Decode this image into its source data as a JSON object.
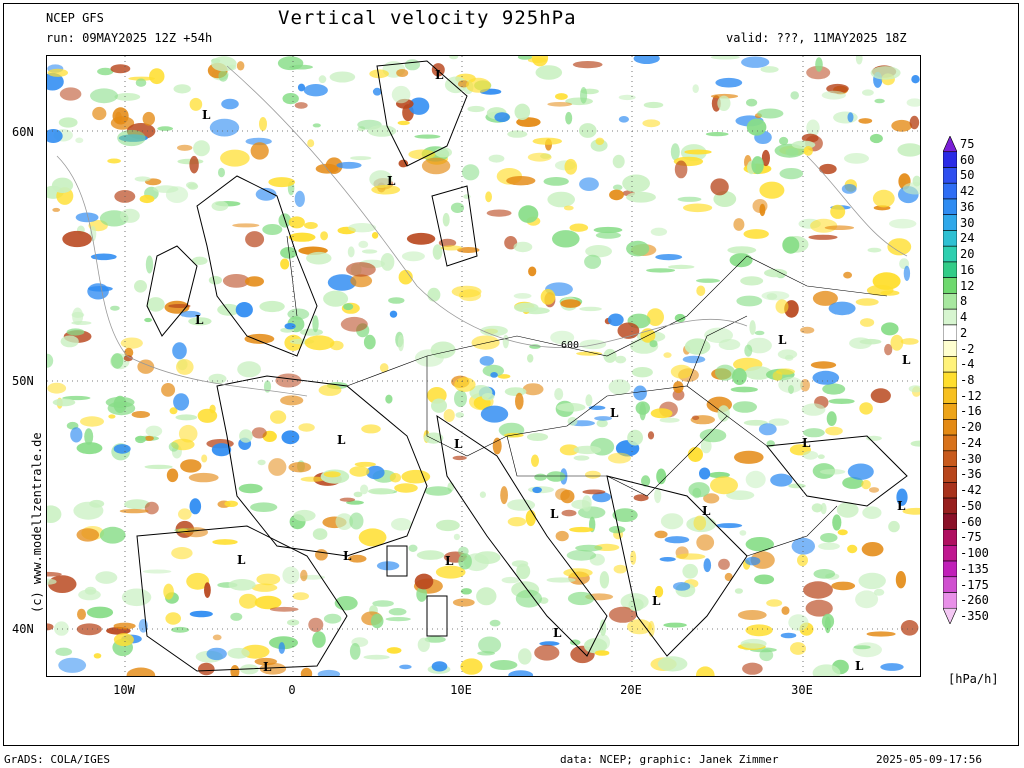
{
  "header": {
    "model": "NCEP GFS",
    "title": "Vertical velocity 925hPa",
    "run": "run: 09MAY2025 12Z +54h",
    "valid": "valid: ???, 11MAY2025 18Z"
  },
  "map": {
    "lat_labels": [
      "60N",
      "50N",
      "40N"
    ],
    "lon_labels": [
      "10W",
      "0",
      "10E",
      "20E",
      "30E"
    ],
    "low_marker": "L",
    "pressure_label": "600",
    "credit": "(c) www.modellzentrale.de"
  },
  "colorbar": {
    "unit": "[hPa/h]",
    "levels": [
      "75",
      "60",
      "50",
      "42",
      "36",
      "30",
      "24",
      "20",
      "16",
      "12",
      "8",
      "4",
      "2",
      "-2",
      "-4",
      "-8",
      "-12",
      "-16",
      "-20",
      "-24",
      "-30",
      "-36",
      "-42",
      "-50",
      "-60",
      "-75",
      "-100",
      "-135",
      "-175",
      "-260",
      "-350"
    ],
    "colors": [
      "#7a1fd6",
      "#2b2be6",
      "#2f4ff0",
      "#2f6ef4",
      "#2f8cf2",
      "#2fa8ea",
      "#2ec0d2",
      "#2ecfb0",
      "#33cc88",
      "#6fd96f",
      "#a8e8a0",
      "#d7f5d0",
      "#ffffff",
      "#ffffd0",
      "#fff27a",
      "#ffde2e",
      "#f7c020",
      "#eea418",
      "#e48a14",
      "#d8721a",
      "#c85a1c",
      "#b8461c",
      "#a8321c",
      "#98201e",
      "#8a1028",
      "#b01060",
      "#c01890",
      "#c020b8",
      "#d050d0",
      "#e890e8",
      "#f4c8f4"
    ]
  },
  "footer": {
    "left": "GrADS: COLA/IGES",
    "data": "data: NCEP; graphic: Janek Zimmer",
    "timestamp": "2025-05-09-17:56"
  },
  "colors": {
    "land_green": "#c8f0c0",
    "updraft_green": "#88dd88",
    "downdraft_yellow": "#ffde2e",
    "downdraft_orange": "#e48a14",
    "strong_downdraft": "#b8461c",
    "updraft_blue": "#2f8cf2"
  }
}
